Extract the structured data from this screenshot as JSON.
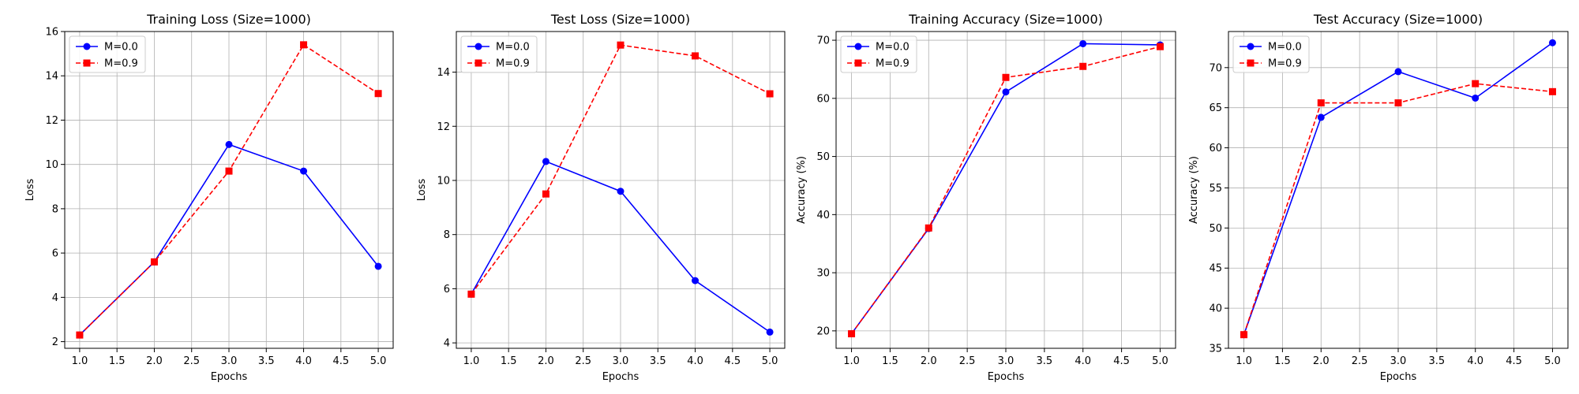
{
  "chart_data": [
    {
      "type": "line",
      "title": "Training Loss (Size=1000)",
      "xlabel": "Epochs",
      "ylabel": "Loss",
      "x": [
        1,
        2,
        3,
        4,
        5
      ],
      "xlim": [
        0.8,
        5.2
      ],
      "ylim": [
        1.7,
        16.0
      ],
      "xticks": [
        1.0,
        1.5,
        2.0,
        2.5,
        3.0,
        3.5,
        4.0,
        4.5,
        5.0
      ],
      "yticks": [
        2,
        4,
        6,
        8,
        10,
        12,
        14,
        16
      ],
      "grid": true,
      "legend_position": "top-left",
      "series": [
        {
          "name": "M=0.0",
          "color": "#0000ff",
          "marker": "circle",
          "linestyle": "solid",
          "values": [
            2.3,
            5.6,
            10.9,
            9.7,
            5.4
          ]
        },
        {
          "name": "M=0.9",
          "color": "#ff0000",
          "marker": "square",
          "linestyle": "dashed",
          "values": [
            2.3,
            5.6,
            9.7,
            15.4,
            13.2
          ]
        }
      ]
    },
    {
      "type": "line",
      "title": "Test Loss (Size=1000)",
      "xlabel": "Epochs",
      "ylabel": "Loss",
      "x": [
        1,
        2,
        3,
        4,
        5
      ],
      "xlim": [
        0.8,
        5.2
      ],
      "ylim": [
        3.8,
        15.5
      ],
      "xticks": [
        1.0,
        1.5,
        2.0,
        2.5,
        3.0,
        3.5,
        4.0,
        4.5,
        5.0
      ],
      "yticks": [
        4,
        6,
        8,
        10,
        12,
        14
      ],
      "grid": true,
      "legend_position": "top-left",
      "series": [
        {
          "name": "M=0.0",
          "color": "#0000ff",
          "marker": "circle",
          "linestyle": "solid",
          "values": [
            5.8,
            10.7,
            9.6,
            6.3,
            4.4
          ]
        },
        {
          "name": "M=0.9",
          "color": "#ff0000",
          "marker": "square",
          "linestyle": "dashed",
          "values": [
            5.8,
            9.5,
            15.0,
            14.6,
            13.2
          ]
        }
      ]
    },
    {
      "type": "line",
      "title": "Training Accuracy (Size=1000)",
      "xlabel": "Epochs",
      "ylabel": "Accuracy (%)",
      "x": [
        1,
        2,
        3,
        4,
        5
      ],
      "xlim": [
        0.8,
        5.2
      ],
      "ylim": [
        17.0,
        71.5
      ],
      "xticks": [
        1.0,
        1.5,
        2.0,
        2.5,
        3.0,
        3.5,
        4.0,
        4.5,
        5.0
      ],
      "yticks": [
        20,
        30,
        40,
        50,
        60,
        70
      ],
      "grid": true,
      "legend_position": "top-left",
      "series": [
        {
          "name": "M=0.0",
          "color": "#0000ff",
          "marker": "circle",
          "linestyle": "solid",
          "values": [
            19.5,
            37.6,
            61.1,
            69.4,
            69.2
          ]
        },
        {
          "name": "M=0.9",
          "color": "#ff0000",
          "marker": "square",
          "linestyle": "dashed",
          "values": [
            19.5,
            37.7,
            63.6,
            65.5,
            68.9
          ]
        }
      ]
    },
    {
      "type": "line",
      "title": "Test Accuracy (Size=1000)",
      "xlabel": "Epochs",
      "ylabel": "Accuracy (%)",
      "x": [
        1,
        2,
        3,
        4,
        5
      ],
      "xlim": [
        0.8,
        5.2
      ],
      "ylim": [
        35.0,
        74.5
      ],
      "xticks": [
        1.0,
        1.5,
        2.0,
        2.5,
        3.0,
        3.5,
        4.0,
        4.5,
        5.0
      ],
      "yticks": [
        35,
        40,
        45,
        50,
        55,
        60,
        65,
        70
      ],
      "grid": true,
      "legend_position": "top-left",
      "series": [
        {
          "name": "M=0.0",
          "color": "#0000ff",
          "marker": "circle",
          "linestyle": "solid",
          "values": [
            36.7,
            63.8,
            69.5,
            66.2,
            73.1
          ]
        },
        {
          "name": "M=0.9",
          "color": "#ff0000",
          "marker": "square",
          "linestyle": "dashed",
          "values": [
            36.7,
            65.6,
            65.6,
            68.0,
            67.0
          ]
        }
      ]
    }
  ]
}
